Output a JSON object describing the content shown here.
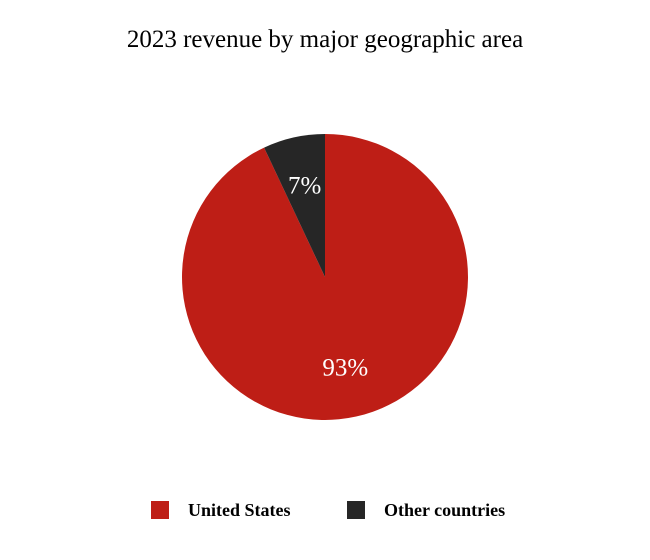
{
  "chart_data": {
    "type": "pie",
    "title": "2023 revenue by major geographic area",
    "slices": [
      {
        "name": "United States",
        "value": 93,
        "label": "93%",
        "color": "#be1e16"
      },
      {
        "name": "Other countries",
        "value": 7,
        "label": "7%",
        "color": "#262626"
      }
    ],
    "start_angle_deg": 0,
    "direction": "clockwise",
    "legend_position": "bottom"
  }
}
